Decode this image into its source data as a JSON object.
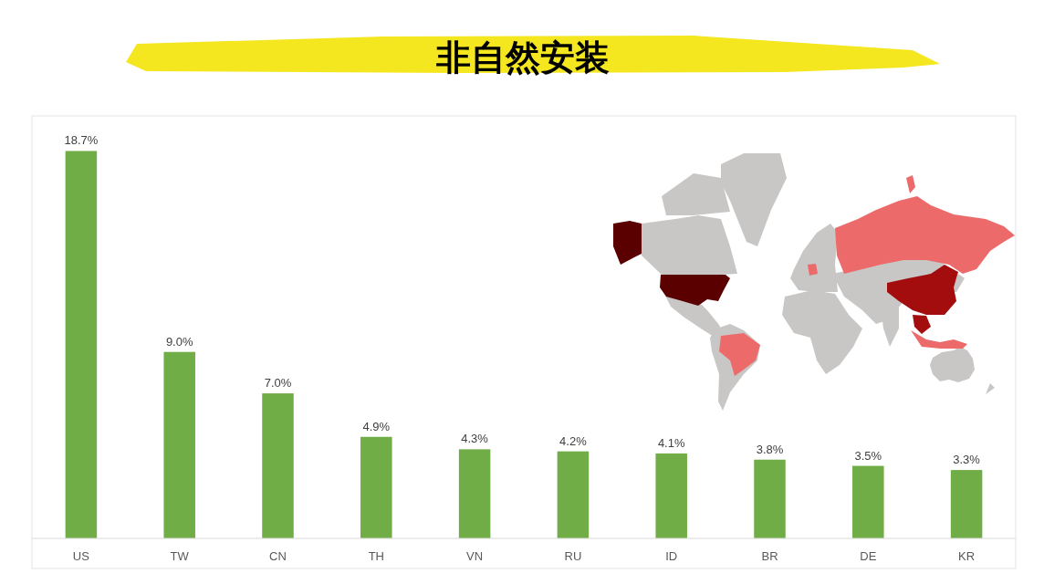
{
  "chart_data": {
    "type": "bar",
    "title": "非自然安装",
    "categories": [
      "US",
      "TW",
      "CN",
      "TH",
      "VN",
      "RU",
      "ID",
      "BR",
      "DE",
      "KR"
    ],
    "values": [
      18.7,
      9.0,
      7.0,
      4.9,
      4.3,
      4.2,
      4.1,
      3.8,
      3.5,
      3.3
    ],
    "color": "#70ad47",
    "value_labels": [
      "18.7%",
      "9.0%",
      "7.0%",
      "4.9%",
      "4.3%",
      "4.2%",
      "4.1%",
      "3.8%",
      "3.5%",
      "3.3%"
    ]
  }
}
